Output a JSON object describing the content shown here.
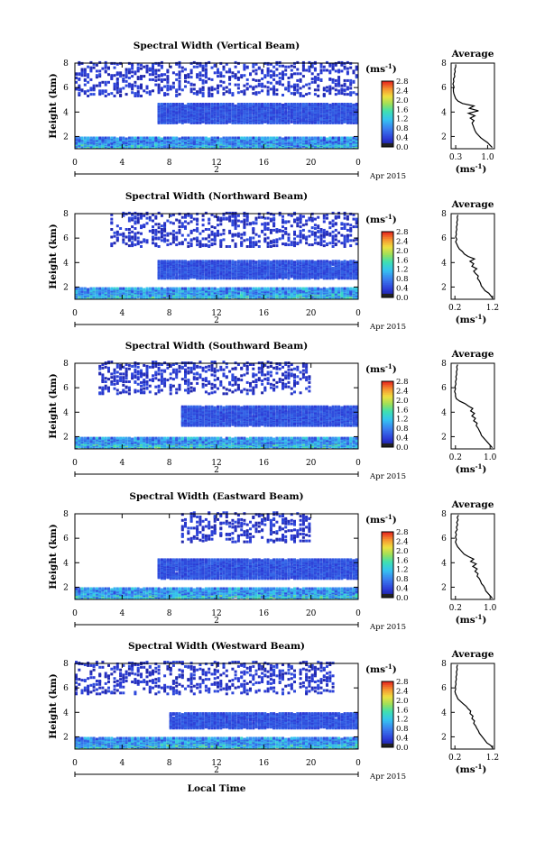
{
  "figure": {
    "x_axis_label": "Local Time",
    "day_label": "2",
    "month_label": "Apr 2015",
    "colorbar_unit": "(ms",
    "colorbar_unit_exp": "-1",
    "colorbar_ticks": [
      "0.0",
      "0.4",
      "0.8",
      "1.2",
      "1.6",
      "2.0",
      "2.4",
      "2.8"
    ],
    "avg_title": "Average",
    "avg_unit": "(ms",
    "avg_unit_exp": "-1"
  },
  "chart_data": [
    {
      "type": "heatmap",
      "title": "Spectral Width (Vertical Beam)",
      "ylabel": "Height (km)",
      "xlabel": "Local Time",
      "x_ticks": [
        "0",
        "4",
        "8",
        "12",
        "16",
        "20",
        "0"
      ],
      "y_ticks": [
        "2",
        "4",
        "6",
        "8"
      ],
      "xlim": [
        0,
        24
      ],
      "ylim": [
        1,
        8
      ],
      "colorbar": {
        "label": "ms^-1",
        "range": [
          0,
          2.8
        ],
        "ticks": [
          "0.0",
          "0.4",
          "0.8",
          "1.2",
          "1.6",
          "2.0",
          "2.4",
          "2.8"
        ]
      },
      "layers": [
        {
          "height_range": [
            1.0,
            1.8
          ],
          "time_range": [
            0,
            24
          ],
          "typical_width": 0.8
        },
        {
          "height_range": [
            3.0,
            4.6
          ],
          "time_range": [
            7,
            24
          ],
          "typical_width": 0.5
        },
        {
          "height_range": [
            5.2,
            8.0
          ],
          "time_range": [
            0,
            24
          ],
          "typical_width": 0.3
        }
      ],
      "average_profile": {
        "title": "Average",
        "xlabel": "ms^-1",
        "x_ticks": [
          "0.3",
          "1.0"
        ],
        "xlim": [
          0.2,
          1.15
        ],
        "y_ticks": [
          "2",
          "4",
          "6",
          "8"
        ],
        "ylim": [
          1,
          8
        ],
        "height": [
          1.1,
          1.3,
          1.5,
          1.7,
          1.9,
          2.1,
          2.3,
          2.5,
          2.7,
          2.9,
          3.1,
          3.3,
          3.5,
          3.7,
          3.9,
          4.1,
          4.3,
          4.5,
          4.7,
          4.9,
          5.1,
          5.3,
          5.5,
          5.7,
          5.9,
          6.1,
          6.3,
          6.5,
          6.7,
          6.9,
          7.1,
          7.3,
          7.5,
          7.7,
          7.9
        ],
        "width": [
          1.1,
          1.05,
          1.0,
          0.92,
          0.85,
          0.8,
          0.75,
          0.72,
          0.7,
          0.68,
          0.66,
          0.7,
          0.62,
          0.72,
          0.58,
          0.8,
          0.6,
          0.7,
          0.45,
          0.35,
          0.3,
          0.28,
          0.26,
          0.25,
          0.25,
          0.26,
          0.24,
          0.26,
          0.25,
          0.28,
          0.27,
          0.29,
          0.28,
          0.3,
          0.3
        ]
      }
    },
    {
      "type": "heatmap",
      "title": "Spectral Width (Northward Beam)",
      "ylabel": "Height (km)",
      "xlabel": "Local Time",
      "x_ticks": [
        "0",
        "4",
        "8",
        "12",
        "16",
        "20",
        "0"
      ],
      "y_ticks": [
        "2",
        "4",
        "6",
        "8"
      ],
      "xlim": [
        0,
        24
      ],
      "ylim": [
        1,
        8
      ],
      "colorbar": {
        "label": "ms^-1",
        "range": [
          0,
          2.8
        ],
        "ticks": [
          "0.0",
          "0.4",
          "0.8",
          "1.2",
          "1.6",
          "2.0",
          "2.4",
          "2.8"
        ]
      },
      "layers": [
        {
          "height_range": [
            1.0,
            1.8
          ],
          "time_range": [
            0,
            24
          ],
          "typical_width": 0.9
        },
        {
          "height_range": [
            2.6,
            4.0
          ],
          "time_range": [
            7,
            24
          ],
          "typical_width": 0.5
        },
        {
          "height_range": [
            5.2,
            8.0
          ],
          "time_range": [
            3,
            24
          ],
          "typical_width": 0.3
        }
      ],
      "average_profile": {
        "title": "Average",
        "xlabel": "ms^-1",
        "x_ticks": [
          "0.2",
          "1.2"
        ],
        "xlim": [
          0.1,
          1.25
        ],
        "y_ticks": [
          "2",
          "4",
          "6",
          "8"
        ],
        "ylim": [
          1,
          8
        ],
        "height": [
          1.1,
          1.3,
          1.5,
          1.7,
          1.9,
          2.1,
          2.3,
          2.5,
          2.7,
          2.9,
          3.1,
          3.3,
          3.5,
          3.7,
          3.9,
          4.1,
          4.3,
          4.5,
          4.7,
          4.9,
          5.1,
          5.3,
          5.5,
          5.7,
          5.9,
          6.1,
          6.3,
          6.5,
          6.7,
          6.9,
          7.1,
          7.3,
          7.5,
          7.7,
          7.9
        ],
        "width": [
          1.2,
          1.15,
          1.1,
          1.0,
          0.95,
          0.9,
          0.88,
          0.85,
          0.8,
          0.82,
          0.75,
          0.7,
          0.78,
          0.65,
          0.7,
          0.6,
          0.72,
          0.55,
          0.45,
          0.4,
          0.32,
          0.28,
          0.25,
          0.22,
          0.25,
          0.22,
          0.24,
          0.23,
          0.25,
          0.24,
          0.26,
          0.25,
          0.27,
          0.26,
          0.28
        ]
      }
    },
    {
      "type": "heatmap",
      "title": "Spectral Width (Southward Beam)",
      "ylabel": "Height (km)",
      "xlabel": "Local Time",
      "x_ticks": [
        "0",
        "4",
        "8",
        "12",
        "16",
        "20",
        "0"
      ],
      "y_ticks": [
        "2",
        "4",
        "6",
        "8"
      ],
      "xlim": [
        0,
        24
      ],
      "ylim": [
        1,
        8
      ],
      "colorbar": {
        "label": "ms^-1",
        "range": [
          0,
          2.8
        ],
        "ticks": [
          "0.0",
          "0.4",
          "0.8",
          "1.2",
          "1.6",
          "2.0",
          "2.4",
          "2.8"
        ]
      },
      "layers": [
        {
          "height_range": [
            1.0,
            1.8
          ],
          "time_range": [
            0,
            24
          ],
          "typical_width": 0.9
        },
        {
          "height_range": [
            2.8,
            4.4
          ],
          "time_range": [
            9,
            24
          ],
          "typical_width": 0.5
        },
        {
          "height_range": [
            5.4,
            8.0
          ],
          "time_range": [
            2,
            20
          ],
          "typical_width": 0.3
        }
      ],
      "average_profile": {
        "title": "Average",
        "xlabel": "ms^-1",
        "x_ticks": [
          "0.2",
          "1.0"
        ],
        "xlim": [
          0.1,
          1.1
        ],
        "y_ticks": [
          "2",
          "4",
          "6",
          "8"
        ],
        "ylim": [
          1,
          8
        ],
        "height": [
          1.1,
          1.3,
          1.5,
          1.7,
          1.9,
          2.1,
          2.3,
          2.5,
          2.7,
          2.9,
          3.1,
          3.3,
          3.5,
          3.7,
          3.9,
          4.1,
          4.3,
          4.5,
          4.7,
          4.9,
          5.1,
          5.3,
          5.5,
          5.7,
          5.9,
          6.1,
          6.3,
          6.5,
          6.7,
          6.9,
          7.1,
          7.3,
          7.5,
          7.7,
          7.9
        ],
        "width": [
          1.05,
          1.0,
          0.95,
          0.9,
          0.85,
          0.8,
          0.78,
          0.75,
          0.72,
          0.68,
          0.7,
          0.62,
          0.66,
          0.58,
          0.64,
          0.55,
          0.6,
          0.5,
          0.42,
          0.3,
          0.22,
          0.2,
          0.2,
          0.18,
          0.2,
          0.19,
          0.21,
          0.2,
          0.22,
          0.21,
          0.23,
          0.22,
          0.24,
          0.23,
          0.25
        ]
      }
    },
    {
      "type": "heatmap",
      "title": "Spectral Width (Eastward Beam)",
      "ylabel": "Height (km)",
      "xlabel": "Local Time",
      "x_ticks": [
        "0",
        "4",
        "8",
        "12",
        "16",
        "20",
        "0"
      ],
      "y_ticks": [
        "2",
        "4",
        "6",
        "8"
      ],
      "xlim": [
        0,
        24
      ],
      "ylim": [
        1,
        8
      ],
      "colorbar": {
        "label": "ms^-1",
        "range": [
          0,
          2.8
        ],
        "ticks": [
          "0.0",
          "0.4",
          "0.8",
          "1.2",
          "1.6",
          "2.0",
          "2.4",
          "2.8"
        ]
      },
      "layers": [
        {
          "height_range": [
            1.0,
            1.8
          ],
          "time_range": [
            0,
            24
          ],
          "typical_width": 0.9
        },
        {
          "height_range": [
            2.6,
            4.2
          ],
          "time_range": [
            7,
            24
          ],
          "typical_width": 0.5
        },
        {
          "height_range": [
            5.6,
            8.0
          ],
          "time_range": [
            9,
            20
          ],
          "typical_width": 0.3
        }
      ],
      "average_profile": {
        "title": "Average",
        "xlabel": "ms^-1",
        "x_ticks": [
          "0.2",
          "1.0"
        ],
        "xlim": [
          0.1,
          1.1
        ],
        "y_ticks": [
          "2",
          "4",
          "6",
          "8"
        ],
        "ylim": [
          1,
          8
        ],
        "height": [
          1.1,
          1.3,
          1.5,
          1.7,
          1.9,
          2.1,
          2.3,
          2.5,
          2.7,
          2.9,
          3.1,
          3.3,
          3.5,
          3.7,
          3.9,
          4.1,
          4.3,
          4.5,
          4.7,
          4.9,
          5.1,
          5.3,
          5.5,
          5.7,
          5.9,
          6.1,
          6.3,
          6.5,
          6.7,
          6.9,
          7.1,
          7.3,
          7.5,
          7.7,
          7.9
        ],
        "width": [
          1.05,
          1.0,
          0.95,
          0.9,
          0.88,
          0.85,
          0.8,
          0.78,
          0.75,
          0.7,
          0.72,
          0.65,
          0.7,
          0.6,
          0.68,
          0.55,
          0.62,
          0.5,
          0.4,
          0.35,
          0.3,
          0.25,
          0.22,
          0.2,
          0.22,
          0.2,
          0.22,
          0.2,
          0.24,
          0.22,
          0.25,
          0.23,
          0.26,
          0.24,
          0.27
        ]
      }
    },
    {
      "type": "heatmap",
      "title": "Spectral Width (Westward Beam)",
      "ylabel": "Height (km)",
      "xlabel": "Local Time",
      "x_ticks": [
        "0",
        "4",
        "8",
        "12",
        "16",
        "20",
        "0"
      ],
      "y_ticks": [
        "2",
        "4",
        "6",
        "8"
      ],
      "xlim": [
        0,
        24
      ],
      "ylim": [
        1,
        8
      ],
      "colorbar": {
        "label": "ms^-1",
        "range": [
          0,
          2.8
        ],
        "ticks": [
          "0.0",
          "0.4",
          "0.8",
          "1.2",
          "1.6",
          "2.0",
          "2.4",
          "2.8"
        ]
      },
      "layers": [
        {
          "height_range": [
            1.0,
            1.8
          ],
          "time_range": [
            0,
            24
          ],
          "typical_width": 0.9
        },
        {
          "height_range": [
            2.6,
            3.8
          ],
          "time_range": [
            8,
            24
          ],
          "typical_width": 0.5
        },
        {
          "height_range": [
            5.4,
            8.0
          ],
          "time_range": [
            0,
            22
          ],
          "typical_width": 0.3
        }
      ],
      "average_profile": {
        "title": "Average",
        "xlabel": "ms^-1",
        "x_ticks": [
          "0.2",
          "1.2"
        ],
        "xlim": [
          0.1,
          1.25
        ],
        "y_ticks": [
          "2",
          "4",
          "6",
          "8"
        ],
        "ylim": [
          1,
          8
        ],
        "height": [
          1.1,
          1.3,
          1.5,
          1.7,
          1.9,
          2.1,
          2.3,
          2.5,
          2.7,
          2.9,
          3.1,
          3.3,
          3.5,
          3.7,
          3.9,
          4.1,
          4.3,
          4.5,
          4.7,
          4.9,
          5.1,
          5.3,
          5.5,
          5.7,
          5.9,
          6.1,
          6.3,
          6.5,
          6.7,
          6.9,
          7.1,
          7.3,
          7.5,
          7.7,
          7.9
        ],
        "width": [
          1.2,
          1.15,
          1.05,
          1.0,
          0.95,
          0.9,
          0.85,
          0.82,
          0.78,
          0.75,
          0.7,
          0.72,
          0.65,
          0.68,
          0.6,
          0.62,
          0.55,
          0.5,
          0.42,
          0.35,
          0.28,
          0.25,
          0.22,
          0.2,
          0.22,
          0.21,
          0.23,
          0.22,
          0.24,
          0.23,
          0.25,
          0.24,
          0.26,
          0.25,
          0.27
        ]
      }
    }
  ]
}
